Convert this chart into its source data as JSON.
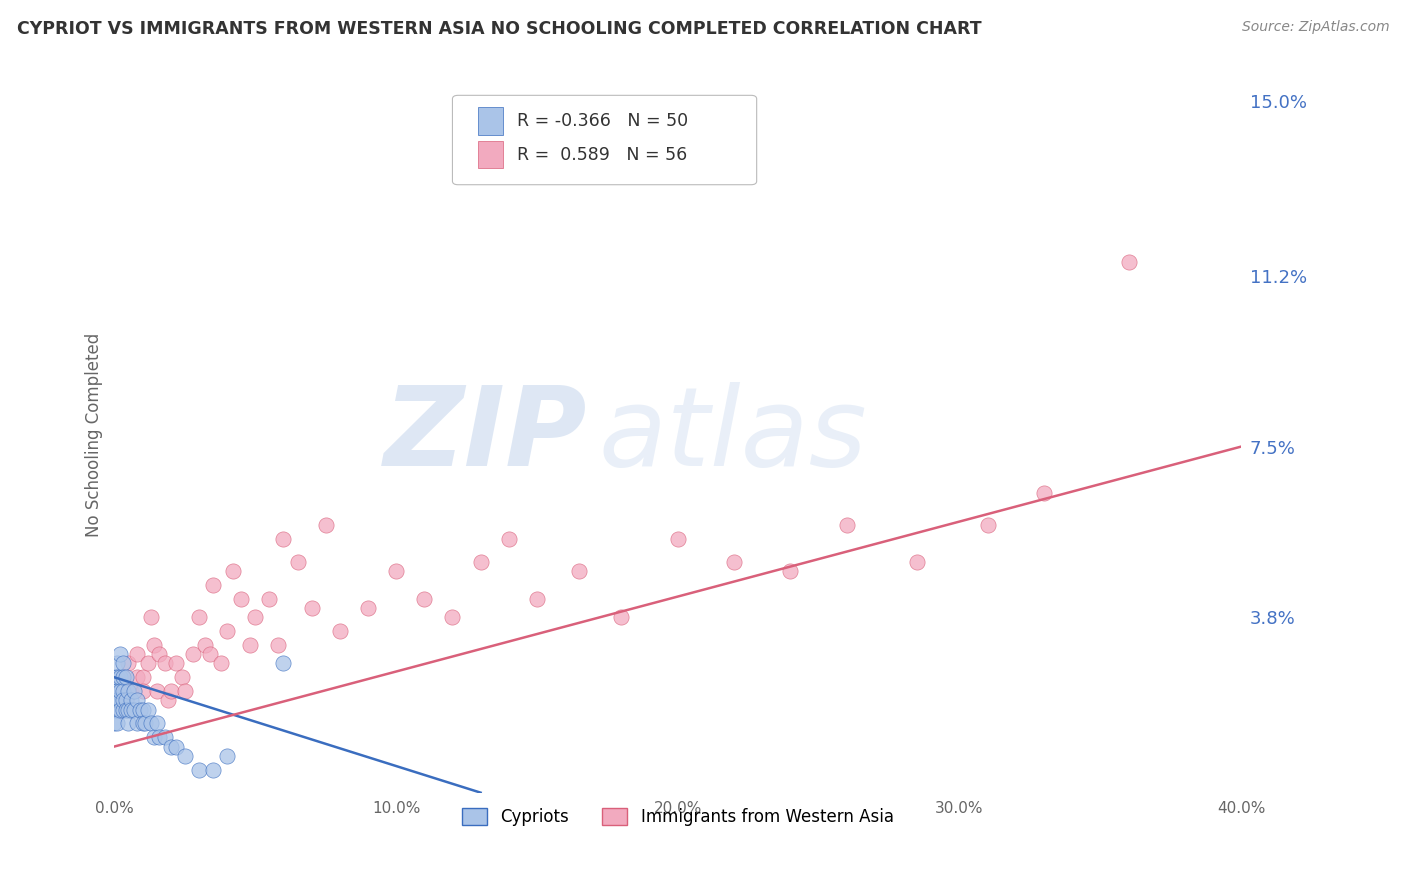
{
  "title": "CYPRIOT VS IMMIGRANTS FROM WESTERN ASIA NO SCHOOLING COMPLETED CORRELATION CHART",
  "source": "Source: ZipAtlas.com",
  "ylabel": "No Schooling Completed",
  "x_tick_labels": [
    "0.0%",
    "10.0%",
    "20.0%",
    "30.0%",
    "40.0%"
  ],
  "x_tick_values": [
    0.0,
    0.1,
    0.2,
    0.3,
    0.4
  ],
  "y_tick_labels": [
    "3.8%",
    "7.5%",
    "11.2%",
    "15.0%"
  ],
  "y_tick_values": [
    0.038,
    0.075,
    0.112,
    0.15
  ],
  "xlim": [
    0.0,
    0.4
  ],
  "ylim": [
    0.0,
    0.155
  ],
  "legend_label1": "Cypriots",
  "legend_label2": "Immigrants from Western Asia",
  "R1": -0.366,
  "N1": 50,
  "R2": 0.589,
  "N2": 56,
  "color_blue": "#aac4e8",
  "color_pink": "#f2aabf",
  "color_blue_line": "#3a6dbf",
  "color_pink_line": "#d9607a",
  "color_axis_label": "#4472c4",
  "background_color": "#ffffff",
  "grid_color": "#cccccc",
  "blue_scatter_x": [
    0.0,
    0.0,
    0.0,
    0.0,
    0.0,
    0.001,
    0.001,
    0.001,
    0.001,
    0.001,
    0.001,
    0.002,
    0.002,
    0.002,
    0.002,
    0.002,
    0.003,
    0.003,
    0.003,
    0.003,
    0.003,
    0.004,
    0.004,
    0.004,
    0.005,
    0.005,
    0.005,
    0.006,
    0.006,
    0.007,
    0.007,
    0.008,
    0.008,
    0.009,
    0.01,
    0.01,
    0.011,
    0.012,
    0.013,
    0.014,
    0.015,
    0.016,
    0.018,
    0.02,
    0.022,
    0.025,
    0.03,
    0.035,
    0.04,
    0.06
  ],
  "blue_scatter_y": [
    0.02,
    0.025,
    0.018,
    0.022,
    0.015,
    0.028,
    0.022,
    0.018,
    0.025,
    0.02,
    0.015,
    0.03,
    0.025,
    0.02,
    0.018,
    0.022,
    0.028,
    0.022,
    0.018,
    0.025,
    0.02,
    0.025,
    0.02,
    0.018,
    0.022,
    0.018,
    0.015,
    0.02,
    0.018,
    0.022,
    0.018,
    0.02,
    0.015,
    0.018,
    0.018,
    0.015,
    0.015,
    0.018,
    0.015,
    0.012,
    0.015,
    0.012,
    0.012,
    0.01,
    0.01,
    0.008,
    0.005,
    0.005,
    0.008,
    0.028
  ],
  "pink_scatter_x": [
    0.001,
    0.002,
    0.003,
    0.004,
    0.005,
    0.006,
    0.008,
    0.008,
    0.01,
    0.01,
    0.012,
    0.013,
    0.014,
    0.015,
    0.016,
    0.018,
    0.019,
    0.02,
    0.022,
    0.024,
    0.025,
    0.028,
    0.03,
    0.032,
    0.034,
    0.035,
    0.038,
    0.04,
    0.042,
    0.045,
    0.048,
    0.05,
    0.055,
    0.058,
    0.06,
    0.065,
    0.07,
    0.075,
    0.08,
    0.09,
    0.1,
    0.11,
    0.12,
    0.13,
    0.14,
    0.15,
    0.165,
    0.18,
    0.2,
    0.22,
    0.24,
    0.26,
    0.285,
    0.31,
    0.33,
    0.36
  ],
  "pink_scatter_y": [
    0.022,
    0.018,
    0.025,
    0.02,
    0.028,
    0.022,
    0.03,
    0.025,
    0.025,
    0.022,
    0.028,
    0.038,
    0.032,
    0.022,
    0.03,
    0.028,
    0.02,
    0.022,
    0.028,
    0.025,
    0.022,
    0.03,
    0.038,
    0.032,
    0.03,
    0.045,
    0.028,
    0.035,
    0.048,
    0.042,
    0.032,
    0.038,
    0.042,
    0.032,
    0.055,
    0.05,
    0.04,
    0.058,
    0.035,
    0.04,
    0.048,
    0.042,
    0.038,
    0.05,
    0.055,
    0.042,
    0.048,
    0.038,
    0.055,
    0.05,
    0.048,
    0.058,
    0.05,
    0.058,
    0.065,
    0.115
  ],
  "blue_trendline_x": [
    0.0,
    0.13
  ],
  "blue_trendline_y": [
    0.025,
    0.0
  ],
  "pink_trendline_x": [
    0.0,
    0.4
  ],
  "pink_trendline_y": [
    0.01,
    0.075
  ]
}
